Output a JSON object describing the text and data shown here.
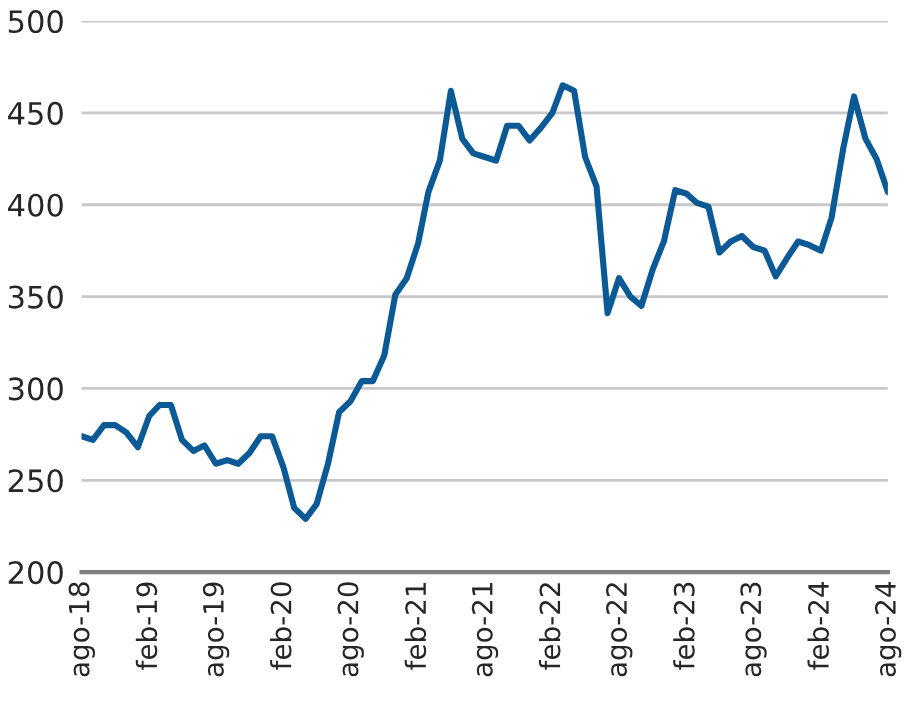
{
  "chart_data": {
    "type": "line",
    "x": [
      "2018-08",
      "2018-09",
      "2018-10",
      "2018-11",
      "2018-12",
      "2019-01",
      "2019-02",
      "2019-03",
      "2019-04",
      "2019-05",
      "2019-06",
      "2019-07",
      "2019-08",
      "2019-09",
      "2019-10",
      "2019-11",
      "2019-12",
      "2020-01",
      "2020-02",
      "2020-03",
      "2020-04",
      "2020-05",
      "2020-06",
      "2020-07",
      "2020-08",
      "2020-09",
      "2020-10",
      "2020-11",
      "2020-12",
      "2021-01",
      "2021-02",
      "2021-03",
      "2021-04",
      "2021-05",
      "2021-06",
      "2021-07",
      "2021-08",
      "2021-09",
      "2021-10",
      "2021-11",
      "2021-12",
      "2022-01",
      "2022-02",
      "2022-03",
      "2022-04",
      "2022-05",
      "2022-06",
      "2022-07",
      "2022-08",
      "2022-09",
      "2022-10",
      "2022-11",
      "2022-12",
      "2023-01",
      "2023-02",
      "2023-03",
      "2023-04",
      "2023-05",
      "2023-06",
      "2023-07",
      "2023-08",
      "2023-09",
      "2023-10",
      "2023-11",
      "2023-12",
      "2024-01",
      "2024-02",
      "2024-03",
      "2024-04",
      "2024-05",
      "2024-06",
      "2024-07",
      "2024-08"
    ],
    "series": [
      {
        "color": "#0b5a96",
        "values": [
          274,
          272,
          280,
          280,
          276,
          268,
          285,
          291,
          291,
          272,
          266,
          269,
          259,
          261,
          259,
          265,
          274,
          274,
          257,
          235,
          229,
          237,
          259,
          287,
          293,
          304,
          304,
          318,
          351,
          360,
          379,
          407,
          424,
          462,
          436,
          428,
          426,
          424,
          443,
          443,
          435,
          442,
          450,
          465,
          462,
          426,
          410,
          341,
          360,
          350,
          345,
          365,
          380,
          408,
          406,
          401,
          399,
          374,
          380,
          383,
          377,
          375,
          361,
          371,
          380,
          378,
          375,
          393,
          430,
          459,
          436,
          425,
          407
        ]
      }
    ],
    "xlim": [
      "2018-08",
      "2024-08"
    ],
    "xticks": [
      {
        "value": "2018-08",
        "label": "ago-18"
      },
      {
        "value": "2019-02",
        "label": "feb-19"
      },
      {
        "value": "2019-08",
        "label": "ago-19"
      },
      {
        "value": "2020-02",
        "label": "feb-20"
      },
      {
        "value": "2020-08",
        "label": "ago-20"
      },
      {
        "value": "2021-02",
        "label": "feb-21"
      },
      {
        "value": "2021-08",
        "label": "ago-21"
      },
      {
        "value": "2022-02",
        "label": "feb-22"
      },
      {
        "value": "2022-08",
        "label": "ago-22"
      },
      {
        "value": "2023-02",
        "label": "feb-23"
      },
      {
        "value": "2023-08",
        "label": "ago-23"
      },
      {
        "value": "2024-02",
        "label": "feb-24"
      },
      {
        "value": "2024-08",
        "label": "ago-24"
      }
    ],
    "ylim": [
      200,
      500
    ],
    "yticks": [
      200,
      250,
      300,
      350,
      400,
      450,
      500
    ],
    "grid": "y",
    "legend": false
  }
}
